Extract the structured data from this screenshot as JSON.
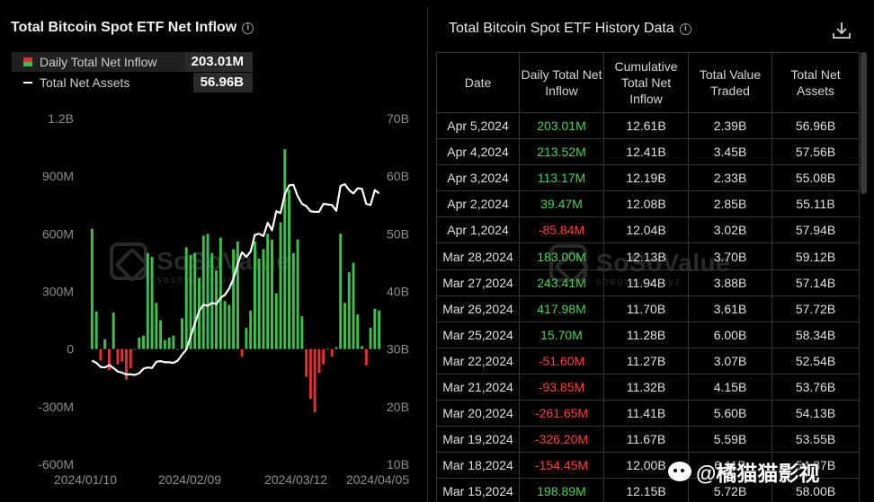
{
  "chart_title": "Total Bitcoin Spot ETF Net Inflow",
  "legend": {
    "inflow_label": "Daily Total Net Inflow",
    "inflow_value": "203.01M",
    "assets_label": "Total Net Assets",
    "assets_value": "56.96B"
  },
  "watermark": {
    "name": "SoSoValue",
    "sub": "sosovalue.xyz"
  },
  "signature": "@橘猫猫影视",
  "colors": {
    "positive": "#3fbf4f",
    "negative": "#e03232",
    "line": "#ffffff",
    "background": "#000000"
  },
  "chart_data": {
    "type": "bar+line",
    "title": "Total Bitcoin Spot ETF Net Inflow",
    "y_left": {
      "ticks": [
        "1.2B",
        "900M",
        "600M",
        "300M",
        "0",
        "-300M",
        "-600M"
      ],
      "range": [
        -600,
        1200
      ],
      "unit": "M"
    },
    "y_right": {
      "ticks": [
        "70B",
        "60B",
        "50B",
        "40B",
        "30B",
        "20B",
        "10B"
      ],
      "range": [
        10,
        70
      ],
      "unit": "B"
    },
    "x_ticks": [
      "2024/01/10",
      "2024/02/09",
      "2024/03/12",
      "2024/04/05"
    ],
    "series": [
      {
        "name": "Daily Total Net Inflow",
        "type": "bar",
        "values": [
          626,
          195,
          -60,
          50,
          -110,
          190,
          -80,
          -65,
          -160,
          -100,
          0,
          60,
          70,
          500,
          480,
          240,
          150,
          45,
          60,
          70,
          0,
          160,
          530,
          490,
          500,
          370,
          590,
          600,
          500,
          410,
          580,
          250,
          230,
          520,
          560,
          -40,
          110,
          200,
          560,
          470,
          520,
          600,
          570,
          290,
          660,
          1040,
          830,
          500,
          570,
          170,
          -145,
          -260,
          -330,
          -125,
          -80,
          1,
          -40,
          10,
          600,
          240,
          400,
          450,
          180,
          15,
          -85,
          110,
          210,
          200
        ]
      },
      {
        "name": "Total Net Assets",
        "type": "line",
        "values": [
          28.0,
          27.6,
          26.9,
          26.8,
          27.2,
          26.7,
          26.1,
          25.9,
          25.6,
          25.6,
          25.5,
          25.8,
          26.6,
          26.8,
          26.7,
          27.8,
          27.9,
          27.7,
          27.7,
          27.6,
          28.0,
          29.0,
          29.9,
          32.2,
          34.4,
          36.6,
          37.7,
          37.5,
          38.0,
          37.8,
          38.9,
          39.4,
          40.5,
          42.2,
          44.8,
          46.8,
          46.0,
          46.9,
          49.8,
          50.0,
          49.6,
          51.9,
          50.6,
          53.9,
          53.6,
          56.9,
          58.4,
          58.5,
          56.5,
          55.2,
          54.8,
          53.9,
          53.8,
          53.8,
          55.2,
          55.1,
          55.0,
          54.0,
          58.3,
          58.6,
          57.6,
          57.0,
          57.9,
          57.8,
          55.2,
          55.0,
          57.6,
          57.0
        ]
      }
    ],
    "legend_position": "top-left"
  },
  "table": {
    "title": "Total Bitcoin Spot ETF History Data",
    "headers": [
      "Date",
      "Daily Total Net Inflow",
      "Cumulative Total Net Inflow",
      "Total Value Traded",
      "Total Net Assets"
    ],
    "rows": [
      [
        "Apr 5,2024",
        "203.01M",
        "12.61B",
        "2.39B",
        "56.96B"
      ],
      [
        "Apr 4,2024",
        "213.52M",
        "12.41B",
        "3.45B",
        "57.56B"
      ],
      [
        "Apr 3,2024",
        "113.17M",
        "12.19B",
        "2.33B",
        "55.08B"
      ],
      [
        "Apr 2,2024",
        "39.47M",
        "12.08B",
        "2.85B",
        "55.11B"
      ],
      [
        "Apr 1,2024",
        "-85.84M",
        "12.04B",
        "3.02B",
        "57.94B"
      ],
      [
        "Mar 28,2024",
        "183.00M",
        "12.13B",
        "3.70B",
        "59.12B"
      ],
      [
        "Mar 27,2024",
        "243.41M",
        "11.94B",
        "3.88B",
        "57.14B"
      ],
      [
        "Mar 26,2024",
        "417.98M",
        "11.70B",
        "3.61B",
        "57.72B"
      ],
      [
        "Mar 25,2024",
        "15.70M",
        "11.28B",
        "6.00B",
        "58.34B"
      ],
      [
        "Mar 22,2024",
        "-51.60M",
        "11.27B",
        "3.07B",
        "52.54B"
      ],
      [
        "Mar 21,2024",
        "-93.85M",
        "11.32B",
        "4.15B",
        "53.76B"
      ],
      [
        "Mar 20,2024",
        "-261.65M",
        "11.41B",
        "5.60B",
        "54.13B"
      ],
      [
        "Mar 19,2024",
        "-326.20M",
        "11.67B",
        "5.59B",
        "53.55B"
      ],
      [
        "Mar 18,2024",
        "-154.45M",
        "12.00B",
        "6.11B",
        "54.87B"
      ],
      [
        "Mar 15,2024",
        "198.89M",
        "12.15B",
        "5.72B",
        "58.00B"
      ]
    ]
  }
}
